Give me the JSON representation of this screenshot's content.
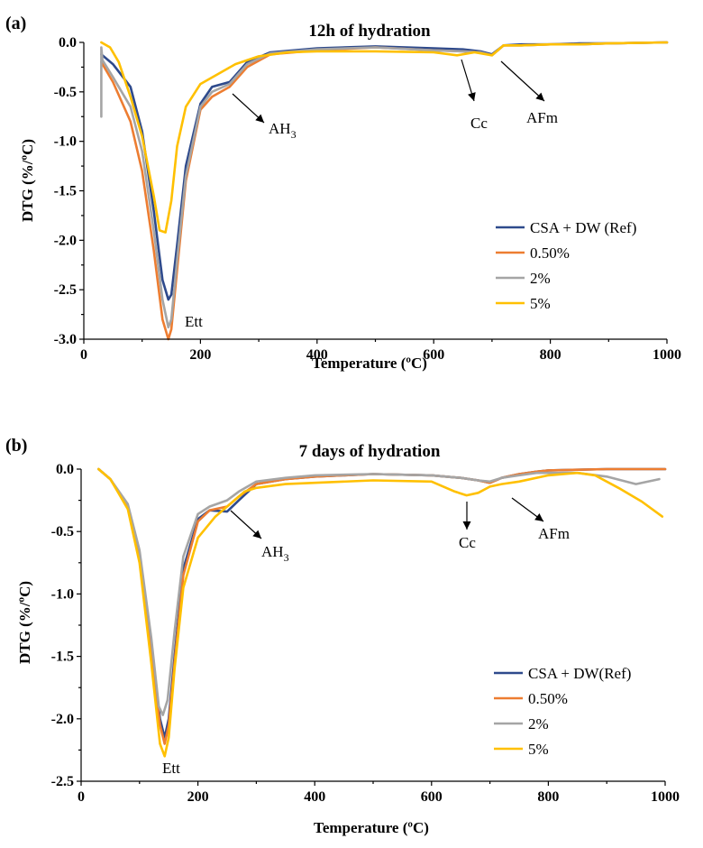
{
  "colors": {
    "ref": "#2E4A8C",
    "p050": "#ED7D31",
    "p2": "#A5A5A5",
    "p5": "#FFC000"
  },
  "chart_data": [
    {
      "panel_label": "(a)",
      "type": "line",
      "title": "12h of hydration",
      "xlabel": "Temperature (ºC)",
      "ylabel": "DTG (%/ºC)",
      "xlim": [
        0,
        1000
      ],
      "ylim": [
        -3.0,
        0.0
      ],
      "x_ticks": [
        0,
        200,
        400,
        600,
        800,
        1000
      ],
      "x_tick_labels": [
        "0",
        "200",
        "400",
        "600",
        "800",
        "1000"
      ],
      "y_ticks": [
        0.0,
        -0.5,
        -1.0,
        -1.5,
        -2.0,
        -2.5,
        -3.0
      ],
      "y_tick_labels": [
        "0.0",
        "-0.5",
        "-1.0",
        "-1.5",
        "-2.0",
        "-2.5",
        "-3.0"
      ],
      "legend_position": "right-middle",
      "series": [
        {
          "name": "CSA + DW (Ref)",
          "color_key": "ref",
          "x": [
            30,
            50,
            80,
            100,
            120,
            135,
            145,
            150,
            160,
            175,
            200,
            220,
            250,
            280,
            320,
            400,
            500,
            600,
            650,
            680,
            700,
            720,
            750,
            800,
            850,
            900,
            1000
          ],
          "y": [
            -0.12,
            -0.22,
            -0.45,
            -0.9,
            -1.7,
            -2.4,
            -2.6,
            -2.55,
            -2.05,
            -1.25,
            -0.62,
            -0.45,
            -0.4,
            -0.2,
            -0.1,
            -0.06,
            -0.04,
            -0.06,
            -0.07,
            -0.09,
            -0.12,
            -0.03,
            -0.02,
            -0.02,
            -0.01,
            -0.01,
            0.0
          ]
        },
        {
          "name": "0.50%",
          "color_key": "p050",
          "x": [
            30,
            50,
            80,
            100,
            120,
            135,
            145,
            150,
            160,
            175,
            200,
            220,
            250,
            280,
            320,
            400,
            500,
            600,
            650,
            680,
            700,
            720,
            750,
            800,
            850,
            900,
            1000
          ],
          "y": [
            -0.2,
            -0.4,
            -0.8,
            -1.3,
            -2.1,
            -2.8,
            -3.0,
            -2.9,
            -2.3,
            -1.4,
            -0.68,
            -0.55,
            -0.45,
            -0.25,
            -0.12,
            -0.08,
            -0.05,
            -0.08,
            -0.09,
            -0.1,
            -0.13,
            -0.03,
            -0.03,
            -0.02,
            -0.02,
            -0.01,
            0.0
          ]
        },
        {
          "name": "2%",
          "color_key": "p2",
          "x": [
            30,
            30,
            32,
            50,
            80,
            100,
            120,
            135,
            145,
            150,
            160,
            175,
            200,
            220,
            250,
            280,
            320,
            400,
            500,
            600,
            650,
            680,
            700,
            720,
            750,
            800,
            850,
            900,
            1000
          ],
          "y": [
            -0.75,
            -0.05,
            -0.18,
            -0.35,
            -0.65,
            -1.1,
            -1.9,
            -2.6,
            -2.88,
            -2.8,
            -2.2,
            -1.35,
            -0.65,
            -0.5,
            -0.42,
            -0.22,
            -0.11,
            -0.07,
            -0.05,
            -0.08,
            -0.09,
            -0.1,
            -0.13,
            -0.03,
            -0.03,
            -0.02,
            -0.02,
            -0.01,
            0.0
          ]
        },
        {
          "name": "5%",
          "color_key": "p5",
          "x": [
            30,
            45,
            60,
            80,
            100,
            120,
            130,
            140,
            150,
            160,
            175,
            200,
            230,
            260,
            300,
            350,
            400,
            500,
            600,
            640,
            670,
            700,
            720,
            750,
            800,
            850,
            900,
            1000
          ],
          "y": [
            0.0,
            -0.05,
            -0.2,
            -0.55,
            -0.95,
            -1.55,
            -1.9,
            -1.92,
            -1.6,
            -1.05,
            -0.65,
            -0.42,
            -0.32,
            -0.22,
            -0.14,
            -0.1,
            -0.09,
            -0.09,
            -0.1,
            -0.13,
            -0.1,
            -0.13,
            -0.03,
            -0.03,
            -0.02,
            -0.02,
            -0.01,
            0.0
          ]
        }
      ],
      "annotations": [
        {
          "text": "Ett",
          "x": 160,
          "y": -2.7
        },
        {
          "text": "AH3",
          "x": 310,
          "y": -0.9
        },
        {
          "text": "Cc",
          "x": 660,
          "y": -0.75
        },
        {
          "text": "AFm",
          "x": 775,
          "y": -0.75
        }
      ]
    },
    {
      "panel_label": "(b)",
      "type": "line",
      "title": "7 days of hydration",
      "xlabel": "Temperature (ºC)",
      "ylabel": "DTG (%/ºC)",
      "xlim": [
        0,
        1000
      ],
      "ylim": [
        -2.5,
        0.0
      ],
      "x_ticks": [
        0,
        200,
        400,
        600,
        800,
        1000
      ],
      "x_tick_labels": [
        "0",
        "200",
        "400",
        "600",
        "800",
        "1000"
      ],
      "y_ticks": [
        0.0,
        -0.5,
        -1.0,
        -1.5,
        -2.0,
        -2.5
      ],
      "y_tick_labels": [
        "0.0",
        "-0.5",
        "-1.0",
        "-1.5",
        "-2.0",
        "-2.5"
      ],
      "legend_position": "right-lower",
      "series": [
        {
          "name": "CSA + DW(Ref)",
          "color_key": "ref",
          "x": [
            30,
            50,
            80,
            100,
            120,
            135,
            143,
            150,
            160,
            175,
            200,
            220,
            250,
            270,
            300,
            350,
            400,
            500,
            600,
            650,
            680,
            700,
            720,
            750,
            780,
            800,
            900,
            1000
          ],
          "y": [
            0.0,
            -0.08,
            -0.3,
            -0.7,
            -1.4,
            -2.0,
            -2.15,
            -2.0,
            -1.5,
            -0.8,
            -0.4,
            -0.33,
            -0.34,
            -0.25,
            -0.12,
            -0.08,
            -0.06,
            -0.04,
            -0.05,
            -0.07,
            -0.09,
            -0.11,
            -0.07,
            -0.04,
            -0.02,
            -0.01,
            0.0,
            0.0
          ]
        },
        {
          "name": "0.50%",
          "color_key": "p050",
          "x": [
            30,
            50,
            80,
            100,
            120,
            135,
            143,
            150,
            160,
            175,
            200,
            220,
            250,
            270,
            300,
            350,
            400,
            500,
            600,
            650,
            680,
            700,
            720,
            750,
            780,
            800,
            900,
            1000
          ],
          "y": [
            0.0,
            -0.08,
            -0.3,
            -0.7,
            -1.45,
            -2.05,
            -2.2,
            -2.05,
            -1.55,
            -0.85,
            -0.42,
            -0.33,
            -0.3,
            -0.22,
            -0.12,
            -0.08,
            -0.06,
            -0.04,
            -0.05,
            -0.07,
            -0.09,
            -0.11,
            -0.07,
            -0.04,
            -0.02,
            -0.01,
            0.0,
            0.0
          ]
        },
        {
          "name": "2%",
          "color_key": "p2",
          "x": [
            30,
            50,
            80,
            100,
            120,
            133,
            140,
            148,
            160,
            175,
            200,
            220,
            250,
            270,
            300,
            350,
            400,
            500,
            600,
            650,
            680,
            700,
            720,
            750,
            780,
            850,
            900,
            950,
            990
          ],
          "y": [
            0.0,
            -0.08,
            -0.28,
            -0.65,
            -1.35,
            -1.9,
            -1.97,
            -1.85,
            -1.3,
            -0.7,
            -0.36,
            -0.3,
            -0.25,
            -0.18,
            -0.1,
            -0.07,
            -0.05,
            -0.04,
            -0.05,
            -0.07,
            -0.09,
            -0.1,
            -0.07,
            -0.05,
            -0.03,
            -0.03,
            -0.06,
            -0.12,
            -0.08
          ]
        },
        {
          "name": "5%",
          "color_key": "p5",
          "x": [
            30,
            50,
            80,
            100,
            120,
            135,
            143,
            150,
            160,
            175,
            200,
            230,
            260,
            280,
            300,
            350,
            400,
            500,
            600,
            640,
            660,
            680,
            700,
            720,
            750,
            800,
            850,
            880,
            920,
            960,
            995
          ],
          "y": [
            0.0,
            -0.08,
            -0.32,
            -0.75,
            -1.55,
            -2.2,
            -2.3,
            -2.15,
            -1.6,
            -0.95,
            -0.55,
            -0.38,
            -0.26,
            -0.18,
            -0.15,
            -0.12,
            -0.11,
            -0.09,
            -0.1,
            -0.18,
            -0.21,
            -0.19,
            -0.14,
            -0.12,
            -0.1,
            -0.05,
            -0.03,
            -0.05,
            -0.15,
            -0.26,
            -0.38
          ]
        }
      ],
      "annotations": [
        {
          "text": "Ett",
          "x": 140,
          "y": -2.45
        },
        {
          "text": "AH3",
          "x": 290,
          "y": -0.52
        },
        {
          "text": "Cc",
          "x": 655,
          "y": -0.52
        },
        {
          "text": "AFm",
          "x": 800,
          "y": -0.43
        }
      ]
    }
  ]
}
